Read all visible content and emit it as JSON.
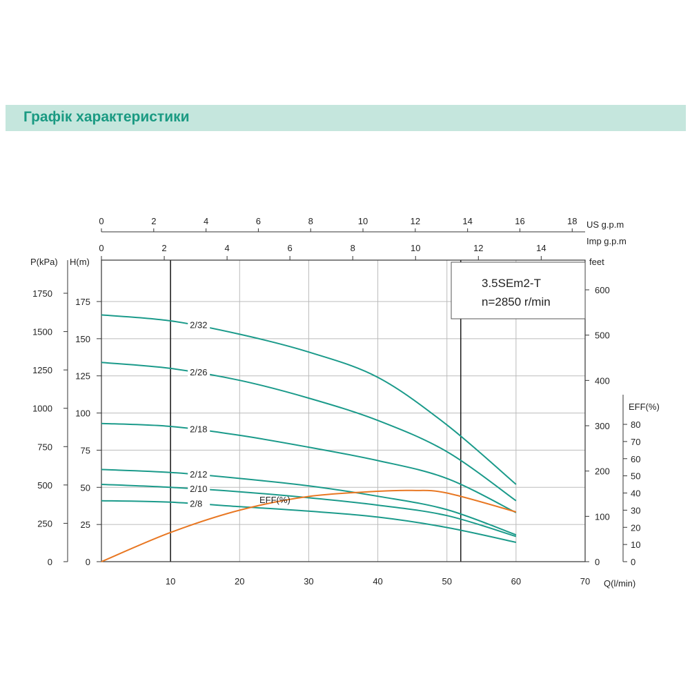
{
  "header": {
    "title": "Графік характеристики"
  },
  "chart_data": {
    "type": "line",
    "model": "3.5SEm2-T",
    "speed": "n=2850 r/min",
    "xlabel": "Q(l/min)",
    "xlim": [
      0,
      70
    ],
    "x_ticks": [
      "10",
      "20",
      "30",
      "40",
      "50",
      "60",
      "70"
    ],
    "ylabel_head": "H(m)",
    "ylim": [
      0,
      175
    ],
    "head_ticks": [
      "0",
      "25",
      "50",
      "75",
      "100",
      "125",
      "150",
      "175"
    ],
    "ylabel_pressure": "P(kPa)",
    "pressure_ticks": [
      "0",
      "250",
      "500",
      "750",
      "1000",
      "1250",
      "1500",
      "1750"
    ],
    "ylabel_feet": "feet",
    "feet_ticks": [
      "0",
      "100",
      "200",
      "300",
      "400",
      "500",
      "600"
    ],
    "us_axis_label": "US  g.p.m",
    "us_ticks": [
      "0",
      "2",
      "4",
      "6",
      "8",
      "10",
      "12",
      "14",
      "16",
      "18"
    ],
    "imp_axis_label": "Imp  g.p.m",
    "imp_ticks": [
      "0",
      "2",
      "4",
      "6",
      "8",
      "10",
      "12",
      "14"
    ],
    "eff_axis_label": "EFF(%)",
    "eff_ticks": [
      "0",
      "10",
      "20",
      "30",
      "40",
      "50",
      "60",
      "70",
      "80"
    ],
    "operating_range": [
      10,
      52
    ],
    "grid": true,
    "colors": {
      "head": "#1a9a8a",
      "eff": "#e87722",
      "header_band": "#c5e6dd",
      "header_text": "#1a9a82"
    },
    "x": [
      0,
      10,
      20,
      30,
      40,
      50,
      60
    ],
    "series": [
      {
        "name": "2/32",
        "values": [
          166,
          162,
          153,
          141,
          124,
          92,
          52
        ]
      },
      {
        "name": "2/26",
        "values": [
          134,
          130,
          122,
          110,
          95,
          74,
          41
        ]
      },
      {
        "name": "2/18",
        "values": [
          93,
          91,
          85,
          77,
          68,
          56,
          33
        ]
      },
      {
        "name": "2/12",
        "values": [
          62,
          60,
          56,
          51,
          44,
          35,
          18
        ]
      },
      {
        "name": "2/10",
        "values": [
          52,
          50,
          47,
          43,
          38,
          31,
          17
        ]
      },
      {
        "name": "2/8",
        "values": [
          41,
          40,
          37,
          34,
          30,
          23,
          13
        ]
      }
    ],
    "eff": {
      "name": "EFF(%)",
      "x": [
        0,
        10,
        20,
        30,
        40,
        45,
        50,
        60
      ],
      "values": [
        0,
        17,
        30,
        38,
        41,
        41.5,
        40,
        29
      ]
    }
  }
}
